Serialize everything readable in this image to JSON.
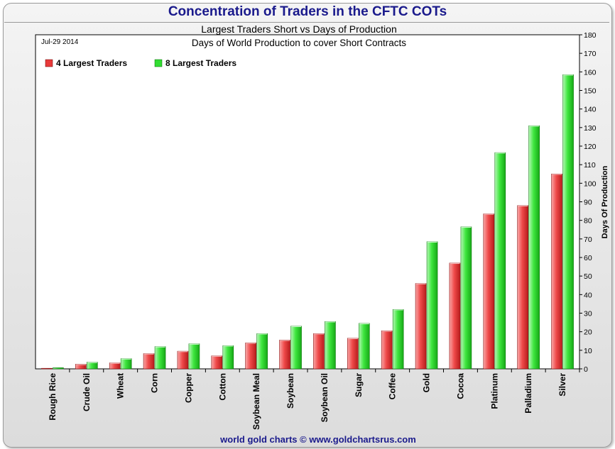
{
  "header": {
    "title": "Concentration of Traders in the CFTC COTs",
    "subtitle": "Largest Traders Short vs Days of Production"
  },
  "footer": {
    "credit": "world gold charts © www.goldchartsrus.com"
  },
  "colors": {
    "series_4": "#e83a3a",
    "series_8": "#33dd33",
    "title": "#1a1a8c",
    "plot_bg": "#ffffff"
  },
  "chart_data": {
    "type": "bar",
    "date_label": "Jul-29 2014",
    "title": "Days of World Production to cover Short Contracts",
    "ylabel": "Days Of Production",
    "ylim": [
      0,
      180
    ],
    "yticks": [
      0,
      10,
      20,
      30,
      40,
      50,
      60,
      70,
      80,
      90,
      100,
      110,
      120,
      130,
      140,
      150,
      160,
      170,
      180
    ],
    "y_axis_side": "right",
    "grid": false,
    "legend_position": "top-left",
    "categories": [
      "Rough Rice",
      "Crude Oil",
      "Wheat",
      "Corn",
      "Copper",
      "Cotton",
      "Soybean Meal",
      "Soybean",
      "Soybean Oil",
      "Sugar",
      "Coffee",
      "Gold",
      "Cocoa",
      "Platinum",
      "Palladium",
      "Silver"
    ],
    "series": [
      {
        "name": "4 Largest Traders",
        "values": [
          0.3,
          2.5,
          3.2,
          8.2,
          9.5,
          7.0,
          14.0,
          15.5,
          19.0,
          16.5,
          20.5,
          46.0,
          57.0,
          83.5,
          88.0,
          105.0
        ]
      },
      {
        "name": "8 Largest Traders",
        "values": [
          0.6,
          3.6,
          5.5,
          12.0,
          13.5,
          12.5,
          19.0,
          23.0,
          25.5,
          24.5,
          32.0,
          68.5,
          76.5,
          116.5,
          131.0,
          158.5
        ]
      }
    ]
  }
}
